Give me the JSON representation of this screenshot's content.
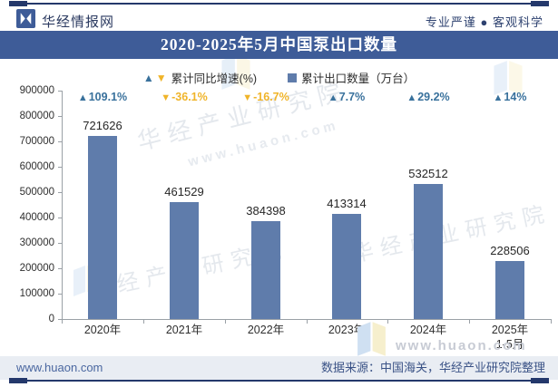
{
  "header": {
    "logo_text": "华经情报网",
    "slogan": "专业严谨 ● 客观科学",
    "title": "2020-2025年5月中国泵出口数量"
  },
  "legend": {
    "growth_label": "累计同比增速(%)",
    "volume_label": "累计出口数量（万台）"
  },
  "icons": {
    "up": "▲",
    "down": "▼",
    "square": "■"
  },
  "chart_data": {
    "type": "bar",
    "title": "2020-2025年5月中国泵出口数量",
    "categories": [
      "2020年",
      "2021年",
      "2022年",
      "2023年",
      "2024年",
      "2025年\n1-5月"
    ],
    "series": [
      {
        "name": "累计出口数量（万台）",
        "values": [
          721626,
          461529,
          384398,
          413314,
          532512,
          228506
        ]
      },
      {
        "name": "累计同比增速(%)",
        "values": [
          109.1,
          -36.1,
          -16.7,
          7.7,
          29.2,
          14
        ]
      }
    ],
    "growth_display": [
      "109.1%",
      "-36.1%",
      "-16.7%",
      "7.7%",
      "29.2%",
      "14%"
    ],
    "value_labels": [
      "721626",
      "461529",
      "384398",
      "413314",
      "532512",
      "228506"
    ],
    "ylim": [
      0,
      900000
    ],
    "ytick_step": 100000,
    "ytick_labels": [
      "0",
      "100000",
      "200000",
      "300000",
      "400000",
      "500000",
      "600000",
      "700000",
      "800000",
      "900000"
    ],
    "grid": false,
    "legend_position": "top",
    "bar_color": "#5f7cab",
    "up_color": "#39719c",
    "down_color": "#f0b429"
  },
  "watermarks": {
    "text": "华经产业研究院",
    "url": "www.huaon.com"
  },
  "footer": {
    "site": "www.huaon.com",
    "source": "数据来源：中国海关，华经产业研究院整理"
  },
  "colors": {
    "accent_navy": "#24386b",
    "title_bar_bg": "#3e5c98",
    "footer_bg": "#e9edf3"
  }
}
